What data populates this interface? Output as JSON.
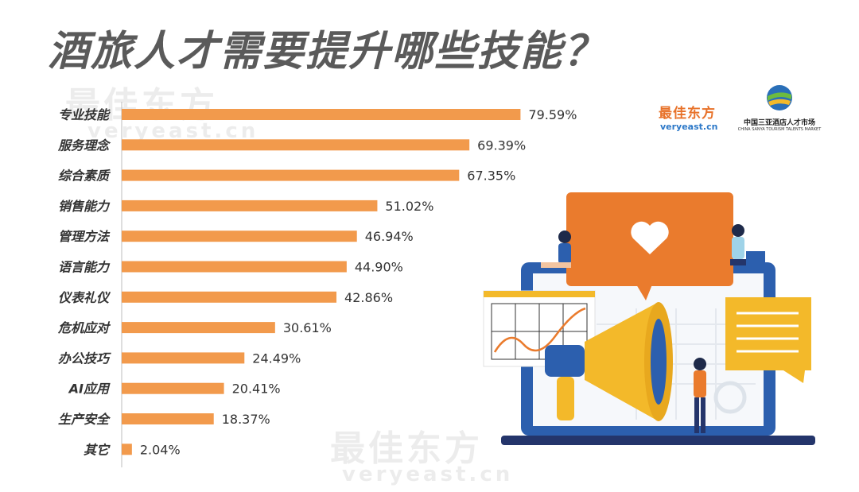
{
  "page": {
    "title": "酒旅人才需要提升哪些技能？",
    "watermark_cn": "最佳东方",
    "watermark_en": "veryeast.cn"
  },
  "logos": {
    "veryeast_cn": "最佳东方",
    "veryeast_en": "veryeast.cn",
    "china_market_cn": "中国三亚酒店人才市场",
    "china_market_en": "CHINA SANYA TOURISM TALENTS MARKET"
  },
  "colors": {
    "bar": "#f29a4c",
    "title": "#5a5a5a",
    "text": "#333333",
    "accent_orange": "#ea7b2d",
    "accent_blue": "#2c5fae",
    "accent_yellow": "#f3b92a"
  },
  "chart_data": {
    "type": "bar",
    "orientation": "horizontal",
    "categories": [
      "专业技能",
      "服务理念",
      "综合素质",
      "销售能力",
      "管理方法",
      "语言能力",
      "仪表礼仪",
      "危机应对",
      "办公技巧",
      "AI应用",
      "生产安全",
      "其它"
    ],
    "values": [
      79.59,
      69.39,
      67.35,
      51.02,
      46.94,
      44.9,
      42.86,
      30.61,
      24.49,
      20.41,
      18.37,
      2.04
    ],
    "data_labels": [
      "79.59%",
      "69.39%",
      "67.35%",
      "51.02%",
      "46.94%",
      "44.90%",
      "42.86%",
      "30.61%",
      "24.49%",
      "20.41%",
      "18.37%",
      "2.04%"
    ],
    "title": "酒旅人才需要提升哪些技能？",
    "xlabel": "",
    "ylabel": "",
    "xlim": [
      0,
      100
    ],
    "grid": false,
    "legend": "none"
  }
}
